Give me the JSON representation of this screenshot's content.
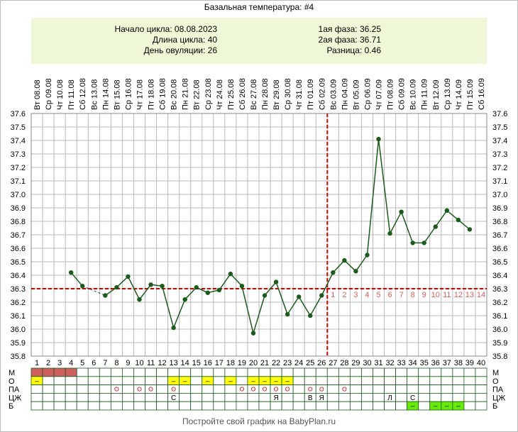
{
  "title": "Базальная температура: #4",
  "info": {
    "cycle_start": "Начало цикла: 08.08.2023",
    "cycle_length": "Длина цикла: 40",
    "ovulation_day": "День овуляции: 26",
    "phase1": "1ая фаза: 36.25",
    "phase2": "2ая фаза: 36.71",
    "difference": "Разница: 0.46"
  },
  "footer": "Постройте свой график на BabyPlan.ru",
  "colors": {
    "line": "#1a5c1a",
    "point": "#1a5c1a",
    "grid": "#b8b8b8",
    "coverline": "#d40000",
    "ovulation_line": "#d40000",
    "phase_numbers": "#e05a5a",
    "menstruation_fill": "#d06060",
    "mucus_fill": "#ffff00",
    "sex_marker": "#e03030",
    "lh_fill": "#66ee00",
    "info_background": "#eef8d6"
  },
  "chart_data": {
    "type": "line",
    "x": [
      1,
      2,
      3,
      4,
      5,
      6,
      7,
      8,
      9,
      10,
      11,
      12,
      13,
      14,
      15,
      16,
      17,
      18,
      19,
      20,
      21,
      22,
      23,
      24,
      25,
      26,
      27,
      28,
      29,
      30,
      31,
      32,
      33,
      34,
      35,
      36,
      37,
      38,
      39,
      40
    ],
    "dates": [
      "Вт 08.08",
      "Ср 09.08",
      "Чт 10.08",
      "Пт 11.08",
      "Сб 12.08",
      "Вс 13.08",
      "Пн 14.08",
      "Вт 15.08",
      "Ср 16.08",
      "Чт 17.08",
      "Пт 18.08",
      "Сб 19.08",
      "Вс 20.08",
      "Пн 21.08",
      "Вт 22.08",
      "Ср 23.08",
      "Чт 24.08",
      "Пт 25.08",
      "Сб 26.08",
      "Вс 27.08",
      "Пн 28.08",
      "Вт 29.08",
      "Ср 30.08",
      "Чт 31.08",
      "Пт 01.09",
      "Сб 02.09",
      "Вс 03.09",
      "Пн 04.09",
      "Вт 05.09",
      "Ср 06.09",
      "Чт 07.09",
      "Пт 08.09",
      "Сб 09.09",
      "Вс 10.09",
      "Пн 11.09",
      "Вт 12.09",
      "Ср 13.09",
      "Чт 14.09",
      "Пт 15.09",
      "Сб 16.09"
    ],
    "series": [
      {
        "values": [
          null,
          null,
          null,
          36.42,
          36.32,
          null,
          36.25,
          36.31,
          36.39,
          36.22,
          36.33,
          36.32,
          36.01,
          36.22,
          36.31,
          36.27,
          36.29,
          36.41,
          36.32,
          35.97,
          36.25,
          36.35,
          36.11,
          36.24,
          36.1,
          36.25,
          36.42,
          36.51,
          36.43,
          36.55,
          37.41,
          36.71,
          36.87,
          36.64,
          36.64,
          36.76,
          36.88,
          36.81,
          36.74,
          null
        ]
      }
    ],
    "yticks": [
      "35.8",
      "35.9",
      "36.0",
      "36.1",
      "36.2",
      "36.3",
      "36.4",
      "36.5",
      "36.6",
      "36.7",
      "36.8",
      "36.9",
      "37.0",
      "37.1",
      "37.2",
      "37.3",
      "37.4",
      "37.5",
      "37.6"
    ],
    "ylim": [
      35.8,
      37.6
    ],
    "coverline": 36.3,
    "ovulation_day": 26,
    "phase_day_numbers": [
      "1",
      "2",
      "3",
      "4",
      "5",
      "6",
      "7",
      "8",
      "9",
      "10",
      "11",
      "12",
      "13",
      "14"
    ],
    "grid": true,
    "legend_rows": [
      {
        "label": "М",
        "marks": {
          "1": "fill",
          "2": "fill",
          "3": "fill",
          "4": "fill"
        }
      },
      {
        "label": "О",
        "marks": {
          "1": "–",
          "13": "–",
          "14": "–",
          "16": "–",
          "18": "–",
          "20": "–",
          "21": "–",
          "22": "–",
          "23": "–"
        }
      },
      {
        "label": "ПА",
        "marks": {
          "8": "o",
          "10": "o",
          "11": "o",
          "13": "o",
          "19": "o",
          "20": "o",
          "21": "o",
          "22": "o",
          "23": "o",
          "25": "o",
          "26": "o",
          "28": "o"
        }
      },
      {
        "label": "ЦЖ",
        "marks": {
          "13": "С",
          "22": "Я",
          "25": "В",
          "26": "Я",
          "32": "Л",
          "34": "С"
        }
      },
      {
        "label": "Б",
        "marks": {
          "34": "–",
          "36": "–",
          "37": "–",
          "38": "–"
        }
      }
    ]
  }
}
